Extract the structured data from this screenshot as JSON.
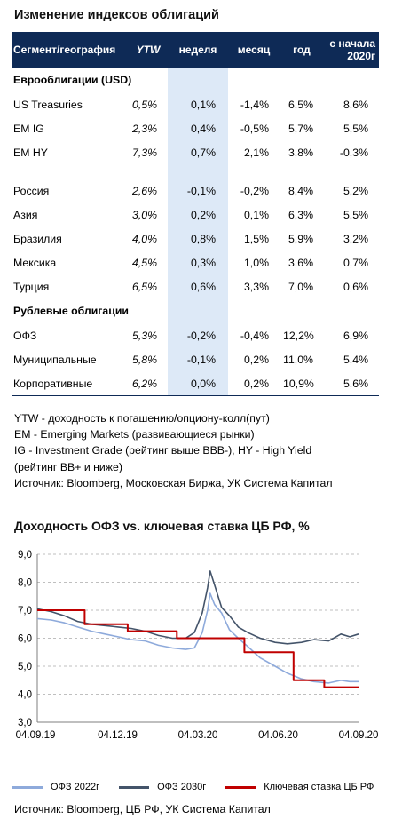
{
  "table": {
    "title": "Изменение индексов облигаций",
    "headers": [
      "Сегмент/география",
      "YTW",
      "неделя",
      "месяц",
      "год",
      "с начала 2020г"
    ],
    "sections": [
      {
        "label": "Еврооблигации (USD)",
        "rows": [
          {
            "name": "US Treasuries",
            "ytw": "0,5%",
            "week": "0,1%",
            "month": "-1,4%",
            "year": "6,5%",
            "ytd": "8,6%"
          },
          {
            "name": "EM IG",
            "ytw": "2,3%",
            "week": "0,4%",
            "month": "-0,5%",
            "year": "5,7%",
            "ytd": "5,5%"
          },
          {
            "name": "EM HY",
            "ytw": "7,3%",
            "week": "0,7%",
            "month": "2,1%",
            "year": "3,8%",
            "ytd": "-0,3%"
          }
        ]
      },
      {
        "label": "",
        "rows": [
          {
            "name": "Россия",
            "ytw": "2,6%",
            "week": "-0,1%",
            "month": "-0,2%",
            "year": "8,4%",
            "ytd": "5,2%"
          },
          {
            "name": "Азия",
            "ytw": "3,0%",
            "week": "0,2%",
            "month": "0,1%",
            "year": "6,3%",
            "ytd": "5,5%"
          },
          {
            "name": "Бразилия",
            "ytw": "4,0%",
            "week": "0,8%",
            "month": "1,5%",
            "year": "5,9%",
            "ytd": "3,2%"
          },
          {
            "name": "Мексика",
            "ytw": "4,5%",
            "week": "0,3%",
            "month": "1,0%",
            "year": "3,6%",
            "ytd": "0,7%"
          },
          {
            "name": "Турция",
            "ytw": "6,5%",
            "week": "0,6%",
            "month": "3,3%",
            "year": "7,0%",
            "ytd": "0,6%"
          }
        ]
      },
      {
        "label": "Рублевые облигации",
        "rows": [
          {
            "name": "ОФЗ",
            "ytw": "5,3%",
            "week": "-0,2%",
            "month": "-0,4%",
            "year": "12,2%",
            "ytd": "6,9%"
          },
          {
            "name": "Муниципальные",
            "ytw": "5,8%",
            "week": "-0,1%",
            "month": "0,2%",
            "year": "11,0%",
            "ytd": "5,4%"
          },
          {
            "name": "Корпоративные",
            "ytw": "6,2%",
            "week": "0,0%",
            "month": "0,2%",
            "year": "10,9%",
            "ytd": "5,6%"
          }
        ]
      }
    ],
    "notes": [
      "YTW - доходность к погашению/опциону-колл(пут)",
      "EM - Emerging Markets (развивающиеся рынки)",
      "IG - Investment Grade (рейтинг выше BBB-), HY - High Yield",
      "(рейтинг BB+ и ниже)",
      "Источник: Bloomberg, Московская Биржа, УК Система Капитал"
    ]
  },
  "chart_title": "Доходность ОФЗ vs. ключевая ставка ЦБ РФ, %",
  "chart_source": "Источник: Bloomberg, ЦБ РФ, УК Система Капитал",
  "chart_data": {
    "type": "line",
    "title": "Доходность ОФЗ vs. ключевая ставка ЦБ РФ, %",
    "ylim": [
      3.0,
      9.0
    ],
    "yticks": [
      "3,0",
      "4,0",
      "5,0",
      "6,0",
      "7,0",
      "8,0",
      "9,0"
    ],
    "xticks": [
      "04.09.19",
      "04.12.19",
      "04.03.20",
      "04.06.20",
      "04.09.20"
    ],
    "x_range": [
      "2019-09-04",
      "2020-09-04"
    ],
    "grid": true,
    "legend": "bottom",
    "series": [
      {
        "name": "ОФЗ 2022г",
        "color": "#8eaadb",
        "points": [
          [
            "2019-09-04",
            6.7
          ],
          [
            "2019-09-20",
            6.65
          ],
          [
            "2019-10-05",
            6.55
          ],
          [
            "2019-10-20",
            6.4
          ],
          [
            "2019-11-05",
            6.25
          ],
          [
            "2019-11-20",
            6.15
          ],
          [
            "2019-12-05",
            6.05
          ],
          [
            "2019-12-20",
            5.95
          ],
          [
            "2020-01-05",
            5.9
          ],
          [
            "2020-01-20",
            5.75
          ],
          [
            "2020-02-05",
            5.65
          ],
          [
            "2020-02-20",
            5.6
          ],
          [
            "2020-03-01",
            5.65
          ],
          [
            "2020-03-10",
            6.2
          ],
          [
            "2020-03-16",
            7.0
          ],
          [
            "2020-03-19",
            7.6
          ],
          [
            "2020-03-24",
            7.2
          ],
          [
            "2020-04-01",
            6.9
          ],
          [
            "2020-04-10",
            6.3
          ],
          [
            "2020-04-20",
            6.0
          ],
          [
            "2020-05-01",
            5.7
          ],
          [
            "2020-05-15",
            5.3
          ],
          [
            "2020-06-01",
            5.0
          ],
          [
            "2020-06-15",
            4.75
          ],
          [
            "2020-07-01",
            4.55
          ],
          [
            "2020-07-15",
            4.45
          ],
          [
            "2020-08-01",
            4.4
          ],
          [
            "2020-08-15",
            4.5
          ],
          [
            "2020-08-25",
            4.45
          ],
          [
            "2020-09-04",
            4.45
          ]
        ]
      },
      {
        "name": "ОФЗ 2030г",
        "color": "#44546a",
        "points": [
          [
            "2019-09-04",
            7.05
          ],
          [
            "2019-09-20",
            6.95
          ],
          [
            "2019-10-05",
            6.8
          ],
          [
            "2019-10-20",
            6.6
          ],
          [
            "2019-11-05",
            6.5
          ],
          [
            "2019-11-20",
            6.45
          ],
          [
            "2019-12-05",
            6.4
          ],
          [
            "2019-12-20",
            6.35
          ],
          [
            "2020-01-05",
            6.25
          ],
          [
            "2020-01-20",
            6.1
          ],
          [
            "2020-02-05",
            6.0
          ],
          [
            "2020-02-20",
            6.0
          ],
          [
            "2020-03-01",
            6.2
          ],
          [
            "2020-03-10",
            6.9
          ],
          [
            "2020-03-16",
            7.8
          ],
          [
            "2020-03-19",
            8.4
          ],
          [
            "2020-03-24",
            7.9
          ],
          [
            "2020-04-01",
            7.1
          ],
          [
            "2020-04-10",
            6.8
          ],
          [
            "2020-04-20",
            6.4
          ],
          [
            "2020-05-01",
            6.2
          ],
          [
            "2020-05-15",
            6.0
          ],
          [
            "2020-06-01",
            5.85
          ],
          [
            "2020-06-15",
            5.8
          ],
          [
            "2020-07-01",
            5.85
          ],
          [
            "2020-07-15",
            5.95
          ],
          [
            "2020-08-01",
            5.9
          ],
          [
            "2020-08-15",
            6.15
          ],
          [
            "2020-08-25",
            6.05
          ],
          [
            "2020-09-04",
            6.15
          ]
        ]
      },
      {
        "name": "Ключевая ставка ЦБ РФ",
        "color": "#c00000",
        "step": true,
        "points": [
          [
            "2019-09-04",
            7.0
          ],
          [
            "2019-10-28",
            6.5
          ],
          [
            "2019-12-16",
            6.25
          ],
          [
            "2020-02-10",
            6.0
          ],
          [
            "2020-04-27",
            5.5
          ],
          [
            "2020-06-22",
            4.5
          ],
          [
            "2020-07-27",
            4.25
          ],
          [
            "2020-09-04",
            4.25
          ]
        ]
      }
    ]
  }
}
